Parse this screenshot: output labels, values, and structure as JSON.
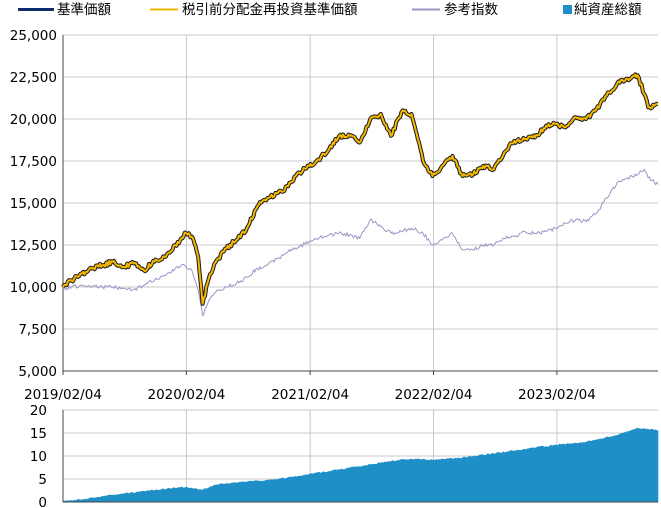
{
  "colors": {
    "base_price": "#0d2c6b",
    "reinvested_price": "#f5b800",
    "reinvested_outline": "#1a1a1a",
    "reference_index": "#9d94c4",
    "net_assets": "#1f8fc8",
    "grid": "#c8c8c8",
    "axis": "#444444"
  },
  "legend": [
    {
      "label": "基準価額",
      "marker": "line",
      "color_key": "base_price"
    },
    {
      "label": "税引前分配金再投資基準価額",
      "marker": "line",
      "color_key": "reinvested_price"
    },
    {
      "label": "参考指数",
      "marker": "line",
      "color_key": "reference_index"
    },
    {
      "label": "純資産総額",
      "marker": "square",
      "color_key": "net_assets"
    }
  ],
  "chart_data": [
    {
      "type": "line",
      "x_tick_labels": [
        "2019/02/04",
        "2020/02/04",
        "2021/02/04",
        "2022/02/04",
        "2023/02/04"
      ],
      "x_range": [
        "2019/02/04",
        "2023/11/30"
      ],
      "ylim": [
        5000,
        25000
      ],
      "y_tick_labels": [
        "5,000",
        "7,500",
        "10,000",
        "12,500",
        "15,000",
        "17,500",
        "20,000",
        "22,500",
        "25,000"
      ],
      "grid": true,
      "legend_position": "top",
      "series": [
        {
          "name": "税引前分配金再投資基準価額",
          "x": [
            "2019-02-04",
            "2019-03-01",
            "2019-04-01",
            "2019-05-01",
            "2019-06-01",
            "2019-07-01",
            "2019-08-01",
            "2019-09-01",
            "2019-10-01",
            "2019-11-01",
            "2019-12-01",
            "2020-01-02",
            "2020-01-20",
            "2020-02-03",
            "2020-02-20",
            "2020-03-10",
            "2020-03-23",
            "2020-04-10",
            "2020-05-01",
            "2020-06-01",
            "2020-07-01",
            "2020-08-01",
            "2020-09-01",
            "2020-10-01",
            "2020-11-01",
            "2020-12-01",
            "2021-01-04",
            "2021-02-01",
            "2021-03-01",
            "2021-04-01",
            "2021-05-01",
            "2021-06-01",
            "2021-07-01",
            "2021-08-01",
            "2021-09-01",
            "2021-10-01",
            "2021-11-01",
            "2021-12-01",
            "2022-01-04",
            "2022-02-01",
            "2022-03-01",
            "2022-04-01",
            "2022-05-01",
            "2022-06-01",
            "2022-07-01",
            "2022-08-01",
            "2022-09-01",
            "2022-10-01",
            "2022-11-01",
            "2022-12-01",
            "2023-01-03",
            "2023-02-01",
            "2023-03-01",
            "2023-04-01",
            "2023-05-01",
            "2023-06-01",
            "2023-07-01",
            "2023-08-01",
            "2023-09-01",
            "2023-10-01",
            "2023-10-20",
            "2023-11-01",
            "2023-11-30"
          ],
          "values": [
            10000,
            10400,
            10800,
            11100,
            11300,
            11500,
            11200,
            11400,
            11000,
            11500,
            11800,
            12500,
            12900,
            13200,
            13000,
            11800,
            9000,
            10500,
            11500,
            12300,
            12800,
            13500,
            14800,
            15300,
            15600,
            16000,
            16800,
            17200,
            17600,
            18200,
            19000,
            19000,
            18600,
            20000,
            20300,
            19000,
            20400,
            20300,
            17500,
            16600,
            17200,
            17800,
            16600,
            16700,
            17200,
            17000,
            18000,
            18700,
            18800,
            18900,
            19600,
            19700,
            19500,
            20100,
            20000,
            20600,
            21400,
            22100,
            22400,
            22600,
            21500,
            20700,
            20900
          ]
        },
        {
          "name": "参考指数",
          "x": [
            "2019-02-04",
            "2019-03-01",
            "2019-04-01",
            "2019-05-01",
            "2019-06-01",
            "2019-07-01",
            "2019-08-01",
            "2019-09-01",
            "2019-10-01",
            "2019-11-01",
            "2019-12-01",
            "2020-01-02",
            "2020-01-20",
            "2020-02-03",
            "2020-02-20",
            "2020-03-10",
            "2020-03-23",
            "2020-04-10",
            "2020-05-01",
            "2020-06-01",
            "2020-07-01",
            "2020-08-01",
            "2020-09-01",
            "2020-10-01",
            "2020-11-01",
            "2020-12-01",
            "2021-01-04",
            "2021-02-01",
            "2021-03-01",
            "2021-04-01",
            "2021-05-01",
            "2021-06-01",
            "2021-07-01",
            "2021-08-01",
            "2021-09-01",
            "2021-10-01",
            "2021-11-01",
            "2021-12-01",
            "2022-01-04",
            "2022-02-01",
            "2022-03-01",
            "2022-04-01",
            "2022-05-01",
            "2022-06-01",
            "2022-07-01",
            "2022-08-01",
            "2022-09-01",
            "2022-10-01",
            "2022-11-01",
            "2022-12-01",
            "2023-01-03",
            "2023-02-01",
            "2023-03-01",
            "2023-04-01",
            "2023-05-01",
            "2023-06-01",
            "2023-07-01",
            "2023-08-01",
            "2023-09-01",
            "2023-10-01",
            "2023-10-20",
            "2023-11-01",
            "2023-11-30"
          ],
          "values": [
            9900,
            10000,
            10100,
            10050,
            10000,
            10000,
            9900,
            9850,
            10100,
            10400,
            10700,
            11100,
            11300,
            11200,
            11000,
            9800,
            8300,
            9200,
            9700,
            10000,
            10200,
            10600,
            11100,
            11300,
            11700,
            12100,
            12400,
            12700,
            12900,
            13100,
            13200,
            13100,
            12900,
            14000,
            13600,
            13200,
            13300,
            13500,
            13200,
            12500,
            12800,
            13200,
            12200,
            12200,
            12500,
            12500,
            12900,
            13000,
            13300,
            13200,
            13300,
            13500,
            13800,
            14000,
            13900,
            14400,
            15300,
            16200,
            16500,
            16700,
            17000,
            16500,
            16100
          ]
        }
      ]
    },
    {
      "type": "area",
      "x_range": [
        "2019/02/04",
        "2023/11/30"
      ],
      "ylim": [
        0,
        20
      ],
      "y_tick_labels": [
        "0",
        "5",
        "10",
        "15",
        "20"
      ],
      "grid": true,
      "series": [
        {
          "name": "純資産総額",
          "x": [
            "2019-02-04",
            "2019-04-01",
            "2019-07-01",
            "2019-10-01",
            "2020-01-02",
            "2020-02-03",
            "2020-03-23",
            "2020-05-01",
            "2020-08-01",
            "2020-11-01",
            "2021-02-01",
            "2021-05-01",
            "2021-08-01",
            "2021-11-01",
            "2022-01-04",
            "2022-02-01",
            "2022-05-01",
            "2022-08-01",
            "2022-11-01",
            "2023-02-01",
            "2023-05-01",
            "2023-08-01",
            "2023-10-01",
            "2023-11-01",
            "2023-11-30"
          ],
          "values": [
            0.1,
            0.5,
            1.5,
            2.3,
            3.0,
            3.2,
            2.6,
            3.7,
            4.4,
            4.9,
            6.0,
            7.0,
            8.1,
            9.2,
            9.3,
            9.1,
            9.6,
            10.5,
            11.5,
            12.4,
            13.0,
            14.5,
            16.0,
            15.8,
            15.5
          ]
        }
      ]
    }
  ]
}
